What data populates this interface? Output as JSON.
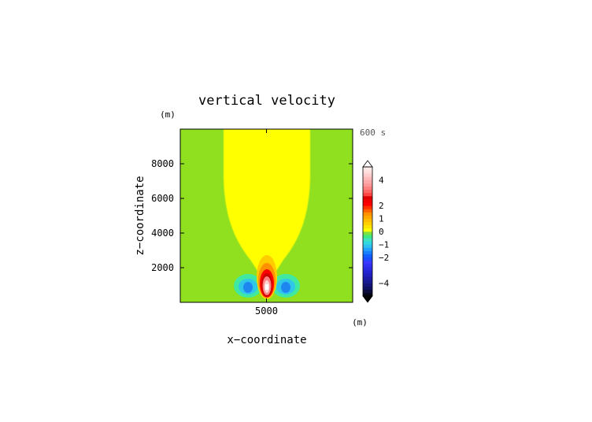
{
  "chart_data": {
    "type": "heatmap",
    "title": "vertical velocity",
    "time_label": "600 s",
    "xlabel": "x−coordinate",
    "ylabel": "z−coordinate",
    "x_unit": "(m)",
    "y_unit": "(m)",
    "xlim": [
      0,
      10000
    ],
    "ylim": [
      0,
      10000
    ],
    "x_ticks": [
      {
        "value": 5000,
        "label": "5000"
      }
    ],
    "y_ticks": [
      {
        "value": 2000,
        "label": "2000"
      },
      {
        "value": 4000,
        "label": "4000"
      },
      {
        "value": 6000,
        "label": "6000"
      },
      {
        "value": 8000,
        "label": "8000"
      }
    ],
    "field_features": [
      {
        "name": "updraft core",
        "x": 5000,
        "z": 1000,
        "value": 5
      },
      {
        "name": "left downdraft",
        "x": 3900,
        "z": 900,
        "value": -1.5
      },
      {
        "name": "right downdraft",
        "x": 6100,
        "z": 900,
        "value": -1.5
      }
    ],
    "colorbar": {
      "levels": [
        {
          "lo": -5.0,
          "color": "#060618"
        },
        {
          "lo": -4.75,
          "color": "#0b0b3c"
        },
        {
          "lo": -4.5,
          "color": "#101060"
        },
        {
          "lo": -4.25,
          "color": "#14147a"
        },
        {
          "lo": -4.0,
          "color": "#181890"
        },
        {
          "lo": -3.75,
          "color": "#1c1ca8"
        },
        {
          "lo": -3.5,
          "color": "#2020be"
        },
        {
          "lo": -3.25,
          "color": "#2424d2"
        },
        {
          "lo": -3.0,
          "color": "#2a2ae2"
        },
        {
          "lo": -2.75,
          "color": "#3030f0"
        },
        {
          "lo": -2.5,
          "color": "#3a3aff"
        },
        {
          "lo": -2.25,
          "color": "#1c4cff"
        },
        {
          "lo": -2.0,
          "color": "#1060ff"
        },
        {
          "lo": -1.75,
          "color": "#1880ff"
        },
        {
          "lo": -1.5,
          "color": "#20a0ff"
        },
        {
          "lo": -1.25,
          "color": "#30c0f0"
        },
        {
          "lo": -1.0,
          "color": "#30d8e0"
        },
        {
          "lo": -0.75,
          "color": "#40e0c0"
        },
        {
          "lo": -0.5,
          "color": "#40e880"
        },
        {
          "lo": -0.25,
          "color": "#80e040"
        },
        {
          "lo": 0.0,
          "color": "#ffff00"
        },
        {
          "lo": 0.25,
          "color": "#ffe400"
        },
        {
          "lo": 0.5,
          "color": "#ffd000"
        },
        {
          "lo": 0.75,
          "color": "#ffbc00"
        },
        {
          "lo": 1.0,
          "color": "#ffa800"
        },
        {
          "lo": 1.25,
          "color": "#ff9000"
        },
        {
          "lo": 1.5,
          "color": "#ff6000"
        },
        {
          "lo": 1.75,
          "color": "#ff3000"
        },
        {
          "lo": 2.0,
          "color": "#ff0000"
        },
        {
          "lo": 2.25,
          "color": "#f00000"
        },
        {
          "lo": 2.5,
          "color": "#dd0000"
        },
        {
          "lo": 2.75,
          "color": "#ff4444"
        },
        {
          "lo": 3.0,
          "color": "#ff6666"
        },
        {
          "lo": 3.25,
          "color": "#ff8080"
        },
        {
          "lo": 3.5,
          "color": "#ff9999"
        },
        {
          "lo": 3.75,
          "color": "#ffaaaa"
        },
        {
          "lo": 4.0,
          "color": "#ffbbbb"
        },
        {
          "lo": 4.25,
          "color": "#ffcccc"
        },
        {
          "lo": 4.5,
          "color": "#ffdddd"
        },
        {
          "lo": 4.75,
          "color": "#ffeaea"
        }
      ],
      "range": [
        -5,
        5
      ],
      "tick_labels": [
        {
          "value": 4,
          "label": "4"
        },
        {
          "value": 2,
          "label": "2"
        },
        {
          "value": 1,
          "label": "1"
        },
        {
          "value": 0,
          "label": "0"
        },
        {
          "value": -1,
          "label": "−1"
        },
        {
          "value": -2,
          "label": "−2"
        },
        {
          "value": -4,
          "label": "−4"
        }
      ],
      "extend": "both"
    }
  }
}
